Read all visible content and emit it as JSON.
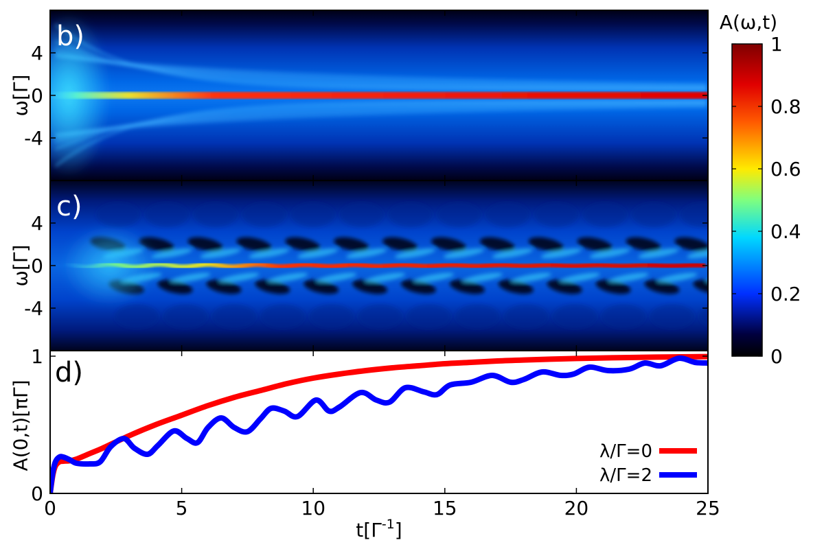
{
  "chart_data": [
    {
      "type": "heatmap",
      "panel_label": "b)",
      "ylabel": "ω[Γ]",
      "xlim": [
        0,
        25
      ],
      "ylim": [
        -8,
        8
      ],
      "yticks": [
        "4",
        "0",
        "-4"
      ],
      "ytick_values": [
        4,
        0,
        -4
      ],
      "lambda_over_gamma": 0,
      "description_values": {
        "peak_center": 0,
        "steady_peak_height": 1
      }
    },
    {
      "type": "heatmap",
      "panel_label": "c)",
      "ylabel": "ω[Γ]",
      "xlim": [
        0,
        25
      ],
      "ylim": [
        -8,
        8
      ],
      "yticks": [
        "4",
        "0",
        "-4"
      ],
      "ytick_values": [
        4,
        0,
        -4
      ],
      "lambda_over_gamma": 2,
      "description_values": {
        "peak_center": 0,
        "sideband_center": 2.3,
        "oscillation_period": 1.85
      }
    },
    {
      "type": "line",
      "panel_label": "d)",
      "ylabel": "A(0,t)[πΓ]",
      "xlabel": "t[Γ",
      "xlabel_sup": "-1",
      "xlabel_end": "]",
      "xlim": [
        0,
        25
      ],
      "ylim": [
        0,
        1
      ],
      "xticks": [
        "0",
        "5",
        "10",
        "15",
        "20",
        "25"
      ],
      "xtick_values": [
        0,
        5,
        10,
        15,
        20,
        25
      ],
      "yticks": [
        "0",
        "1"
      ],
      "ytick_values": [
        0,
        1
      ],
      "series": [
        {
          "name": "λ/Γ=0",
          "color": "#ff0000",
          "x": [
            0,
            0.1,
            0.2,
            0.35,
            0.5,
            0.75,
            1.0,
            1.5,
            2.0,
            3.0,
            4.0,
            5.0,
            6.0,
            7.0,
            8.0,
            9.0,
            10.0,
            11.0,
            12.0,
            13.0,
            14.0,
            15.0,
            16.0,
            17.0,
            18.0,
            19.0,
            20.0,
            21.0,
            22.0,
            23.0,
            24.0,
            25.0
          ],
          "values": [
            0.0,
            0.13,
            0.2,
            0.23,
            0.235,
            0.238,
            0.25,
            0.29,
            0.33,
            0.42,
            0.5,
            0.57,
            0.64,
            0.7,
            0.75,
            0.8,
            0.84,
            0.87,
            0.895,
            0.915,
            0.93,
            0.945,
            0.955,
            0.965,
            0.972,
            0.978,
            0.983,
            0.987,
            0.99,
            0.993,
            0.995,
            0.997
          ]
        },
        {
          "name": "λ/Γ=2",
          "color": "#0000ff",
          "x": [
            0,
            0.1,
            0.2,
            0.35,
            0.5,
            0.75,
            1.0,
            1.5,
            1.9,
            2.3,
            2.8,
            3.2,
            3.7,
            4.1,
            4.7,
            5.2,
            5.6,
            6.0,
            6.5,
            7.0,
            7.5,
            8.0,
            8.4,
            8.9,
            9.4,
            10.1,
            10.6,
            11.0,
            11.8,
            12.4,
            12.9,
            13.5,
            14.2,
            14.7,
            15.2,
            16.0,
            16.8,
            17.5,
            18.0,
            18.7,
            19.4,
            19.9,
            20.5,
            21.2,
            22.0,
            22.6,
            23.2,
            23.9,
            24.5,
            25.0
          ],
          "values": [
            0.0,
            0.15,
            0.23,
            0.265,
            0.265,
            0.245,
            0.22,
            0.215,
            0.23,
            0.34,
            0.4,
            0.33,
            0.285,
            0.35,
            0.455,
            0.4,
            0.37,
            0.48,
            0.55,
            0.48,
            0.45,
            0.545,
            0.62,
            0.6,
            0.56,
            0.68,
            0.6,
            0.63,
            0.735,
            0.68,
            0.665,
            0.77,
            0.74,
            0.72,
            0.79,
            0.81,
            0.86,
            0.81,
            0.83,
            0.885,
            0.86,
            0.87,
            0.92,
            0.895,
            0.905,
            0.95,
            0.93,
            0.985,
            0.955,
            0.95
          ]
        }
      ]
    },
    {
      "type": "colorbar",
      "title": "A(ω,t)",
      "range": [
        0,
        1
      ],
      "ticks": [
        "1",
        "0.8",
        "0.6",
        "0.4",
        "0.2",
        "0"
      ],
      "tick_values": [
        1,
        0.8,
        0.6,
        0.4,
        0.2,
        0
      ],
      "colormap": "jet"
    }
  ]
}
